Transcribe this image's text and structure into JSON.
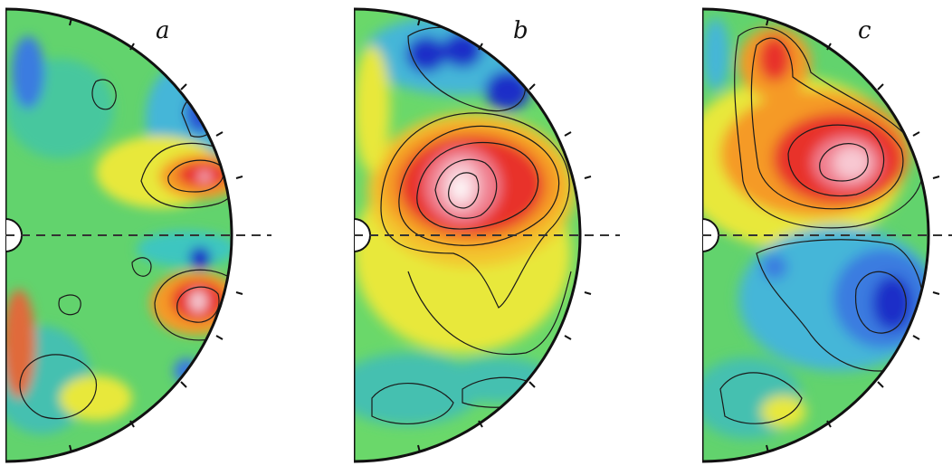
{
  "figure": {
    "panels": [
      {
        "label": "a"
      },
      {
        "label": "b"
      },
      {
        "label": "c"
      }
    ],
    "colors": {
      "background": "#58d07a",
      "deep_blue": "#1f2fc8",
      "blue": "#3a7be0",
      "cyan": "#3cc6c0",
      "green": "#6ad86a",
      "yellow": "#f2ee3a",
      "orange": "#f59a25",
      "red": "#e8302a",
      "pink": "#f4a8b8",
      "white": "#ffffff",
      "contour": "#1a1a1a"
    }
  }
}
